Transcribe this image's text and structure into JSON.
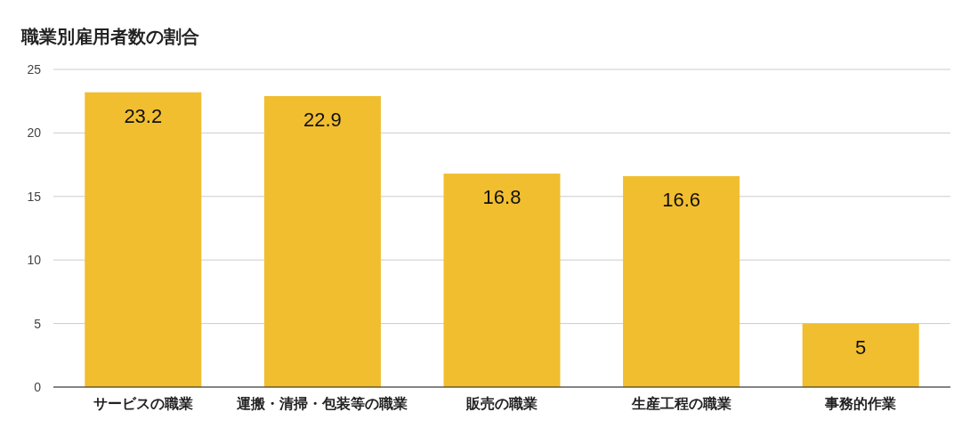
{
  "chart_data": {
    "type": "bar",
    "title": "職業別雇用者数の割合",
    "categories": [
      "サービスの職業",
      "運搬・清掃・包装等の職業",
      "販売の職業",
      "生産工程の職業",
      "事務的作業"
    ],
    "values": [
      23.2,
      22.9,
      16.8,
      16.6,
      5
    ],
    "color": "#f1be2f",
    "ylim": [
      0,
      25
    ],
    "yticks": [
      0,
      5,
      10,
      15,
      20,
      25
    ],
    "grid": "y",
    "data_labels": true
  }
}
